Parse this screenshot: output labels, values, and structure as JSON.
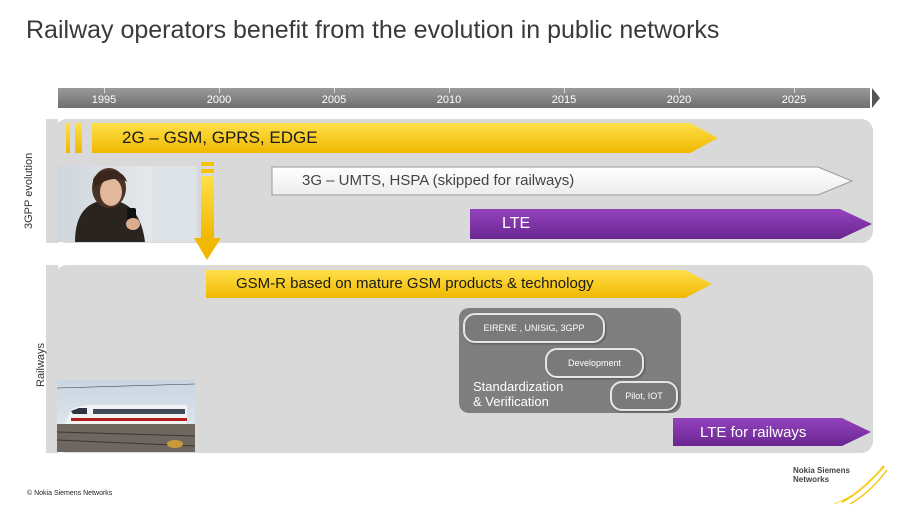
{
  "title": "Railway operators benefit from the evolution in public networks",
  "timeline": {
    "years": [
      "1995",
      "2000",
      "2005",
      "2010",
      "2015",
      "2020",
      "2025"
    ]
  },
  "side_labels": {
    "evolution": "3GPP evolution",
    "railways": "Railways"
  },
  "bars": {
    "gsm": "2G – GSM, GPRS, EDGE",
    "umts": "3G – UMTS, HSPA (skipped for railways)",
    "lte": "LTE",
    "gsmr": "GSM-R based on mature GSM products & technology",
    "lte_rail": "LTE for railways"
  },
  "railway_process": {
    "eirene": "EIRENE , UNISIG, 3GPP",
    "development": "Development",
    "pilot": "Pilot, IOT",
    "standardization_line1": "Standardization",
    "standardization_line2": "& Verification"
  },
  "footer": {
    "copyright": "© Nokia Siemens Networks",
    "logo_line1": "Nokia Siemens",
    "logo_line2": "Networks"
  },
  "colors": {
    "yellow": "#f5c400",
    "purple": "#7b2fa0",
    "white_bar": "#fafafa",
    "panel": "#d9d9d9",
    "timeline": "#7a7a7a"
  }
}
